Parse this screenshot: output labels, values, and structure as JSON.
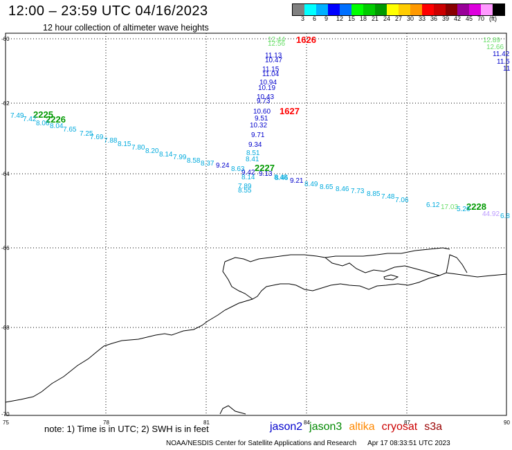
{
  "header": {
    "title": "12:00 – 23:59 UTC 04/16/2023",
    "subtitle": "12 hour collection of altimeter wave heights"
  },
  "colorbar": {
    "colors": [
      "#808080",
      "#00ffff",
      "#00b0ff",
      "#0000ff",
      "#0070ff",
      "#00ff00",
      "#00cc00",
      "#009900",
      "#ffff00",
      "#ffcc00",
      "#ff9900",
      "#ff0000",
      "#cc0000",
      "#880000",
      "#990099",
      "#dd00dd",
      "#ff99ff",
      "#000000"
    ],
    "labels": [
      "3",
      "6",
      "9",
      "12",
      "15",
      "18",
      "21",
      "24",
      "27",
      "30",
      "33",
      "36",
      "39",
      "42",
      "45",
      "70",
      "(ft)"
    ]
  },
  "axes": {
    "y_labels": [
      "-60",
      "-62",
      "-64",
      "-66",
      "-68",
      "-70"
    ],
    "x_labels": [
      "75",
      "78",
      "81",
      "84",
      "87",
      "90"
    ]
  },
  "points": [
    {
      "label": "1626",
      "color": "#ff0000"
    },
    {
      "label": "1627",
      "color": "#ff0000"
    },
    {
      "label": "2225",
      "color": "#009900"
    },
    {
      "label": "2226",
      "color": "#009900"
    },
    {
      "label": "2227",
      "color": "#009900"
    },
    {
      "label": "2228",
      "color": "#009900"
    }
  ],
  "wave_labels": [
    {
      "v": "12.44",
      "c": "#66dd66"
    },
    {
      "v": "12.56",
      "c": "#66dd66"
    },
    {
      "v": "11.13",
      "c": "#0000cc"
    },
    {
      "v": "10.47",
      "c": "#0000cc"
    },
    {
      "v": "11.15",
      "c": "#0000cc"
    },
    {
      "v": "11.04",
      "c": "#0000cc"
    },
    {
      "v": "10.94",
      "c": "#0000cc"
    },
    {
      "v": "10.19",
      "c": "#0000cc"
    },
    {
      "v": "10.43",
      "c": "#0000cc"
    },
    {
      "v": "9.73",
      "c": "#0000cc"
    },
    {
      "v": "10.60",
      "c": "#0000cc"
    },
    {
      "v": "9.51",
      "c": "#0000cc"
    },
    {
      "v": "10.32",
      "c": "#0000cc"
    },
    {
      "v": "9.71",
      "c": "#0000cc"
    },
    {
      "v": "9.34",
      "c": "#0000cc"
    },
    {
      "v": "8.51",
      "c": "#00aadd"
    },
    {
      "v": "8.41",
      "c": "#00aadd"
    },
    {
      "v": "9.24",
      "c": "#0000cc"
    },
    {
      "v": "8.63",
      "c": "#00aadd"
    },
    {
      "v": "9.42",
      "c": "#0000cc"
    },
    {
      "v": "9.13",
      "c": "#0000cc"
    },
    {
      "v": "8.14",
      "c": "#00aadd"
    },
    {
      "v": "8.46",
      "c": "#00aadd"
    },
    {
      "v": "9.21",
      "c": "#0000cc"
    },
    {
      "v": "7.89",
      "c": "#00aadd"
    },
    {
      "v": "8.55",
      "c": "#00aadd"
    },
    {
      "v": "7.49",
      "c": "#00aadd"
    },
    {
      "v": "7.42",
      "c": "#00aadd"
    },
    {
      "v": "8.06",
      "c": "#00aadd"
    },
    {
      "v": "8.04",
      "c": "#00aadd"
    },
    {
      "v": "7.65",
      "c": "#00aadd"
    },
    {
      "v": "7.25",
      "c": "#00aadd"
    },
    {
      "v": "7.69",
      "c": "#00aadd"
    },
    {
      "v": "7.88",
      "c": "#00aadd"
    },
    {
      "v": "8.15",
      "c": "#00aadd"
    },
    {
      "v": "7.80",
      "c": "#00aadd"
    },
    {
      "v": "8.20",
      "c": "#00aadd"
    },
    {
      "v": "8.14",
      "c": "#00aadd"
    },
    {
      "v": "7.99",
      "c": "#00aadd"
    },
    {
      "v": "8.58",
      "c": "#00aadd"
    },
    {
      "v": "8.37",
      "c": "#00aadd"
    },
    {
      "v": "8.48",
      "c": "#00aadd"
    },
    {
      "v": "8.49",
      "c": "#00aadd"
    },
    {
      "v": "8.65",
      "c": "#00aadd"
    },
    {
      "v": "8.46",
      "c": "#00aadd"
    },
    {
      "v": "7.73",
      "c": "#00aadd"
    },
    {
      "v": "8.85",
      "c": "#00aadd"
    },
    {
      "v": "7.48",
      "c": "#00aadd"
    },
    {
      "v": "7.06",
      "c": "#00aadd"
    },
    {
      "v": "6.12",
      "c": "#00aadd"
    },
    {
      "v": "17.03",
      "c": "#66dd66"
    },
    {
      "v": "5.26",
      "c": "#00aadd"
    },
    {
      "v": "44.92",
      "c": "#bb99ff"
    },
    {
      "v": "6.8",
      "c": "#00aadd"
    },
    {
      "v": "12.89",
      "c": "#66dd66"
    },
    {
      "v": "12.66",
      "c": "#66dd66"
    },
    {
      "v": "11.42",
      "c": "#0000cc"
    },
    {
      "v": "11.5",
      "c": "#0000cc"
    },
    {
      "v": "11",
      "c": "#0000cc"
    }
  ],
  "footer": {
    "note": "note: 1) Time is in UTC; 2) SWH is in feet",
    "sats": [
      {
        "name": "jason2",
        "color": "#0000cc"
      },
      {
        "name": "jason3",
        "color": "#008800"
      },
      {
        "name": "altika",
        "color": "#ff8800"
      },
      {
        "name": "cryosat",
        "color": "#cc0000"
      },
      {
        "name": "s3a",
        "color": "#990000"
      }
    ],
    "credit": "NOAA/NESDIS Center for Satellite Applications and Research",
    "timestamp": "Apr 17 08:33:51 UTC 2023"
  }
}
